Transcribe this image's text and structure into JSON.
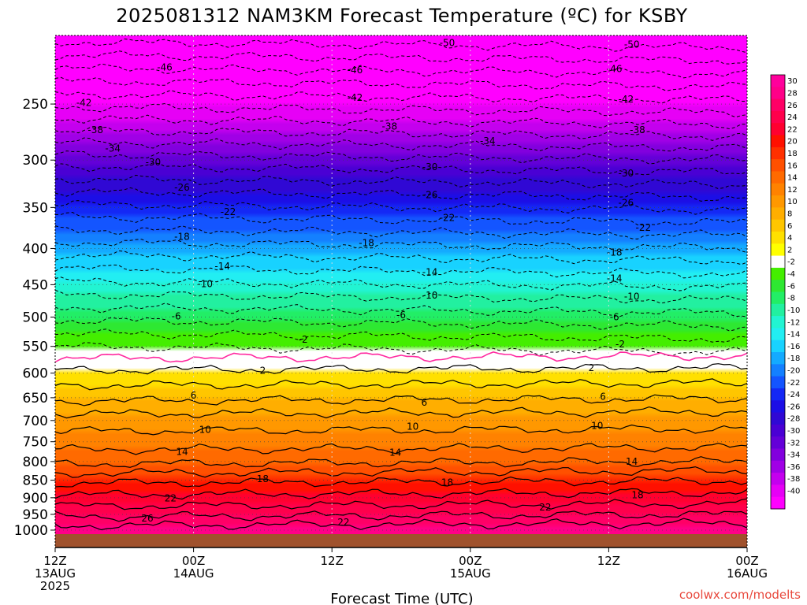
{
  "chart_data": {
    "type": "time-height-contour",
    "title": "2025081312 NAM3KM Forecast Temperature (ºC) for KSBY",
    "xlabel": "Forecast Time (UTC)",
    "ylabel": "",
    "credit": "coolwx.com/modelts",
    "y_axis": {
      "ticks": [
        "250",
        "300",
        "350",
        "400",
        "450",
        "500",
        "550",
        "600",
        "650",
        "700",
        "750",
        "800",
        "850",
        "900",
        "950",
        "1000"
      ],
      "range": [
        1013,
        200
      ],
      "scale": "log-pressure"
    },
    "x_axis": {
      "range": [
        0,
        60
      ],
      "unit": "forecast hours",
      "ticks": [
        {
          "hour": 0,
          "line1": "12Z",
          "line2": "13AUG",
          "line3": "2025"
        },
        {
          "hour": 12,
          "line1": "00Z",
          "line2": "14AUG",
          "line3": ""
        },
        {
          "hour": 24,
          "line1": "12Z",
          "line2": "",
          "line3": ""
        },
        {
          "hour": 36,
          "line1": "00Z",
          "line2": "15AUG",
          "line3": ""
        },
        {
          "hour": 48,
          "line1": "12Z",
          "line2": "",
          "line3": ""
        },
        {
          "hour": 60,
          "line1": "00Z",
          "line2": "16AUG",
          "line3": ""
        }
      ]
    },
    "grid": {
      "x": "dotted",
      "y": "dotted"
    },
    "colorbar": {
      "placement": "right",
      "labels": [
        "30",
        "28",
        "26",
        "24",
        "22",
        "20",
        "18",
        "16",
        "14",
        "12",
        "10",
        "8",
        "6",
        "4",
        "2",
        "-2",
        "-4",
        "-6",
        "-8",
        "-10",
        "-12",
        "-14",
        "-16",
        "-18",
        "-20",
        "-22",
        "-24",
        "-26",
        "-28",
        "-30",
        "-32",
        "-34",
        "-36",
        "-38",
        "-40"
      ],
      "colors": [
        "#ff009c",
        "#ff0088",
        "#ff0066",
        "#ff004c",
        "#ff0030",
        "#ff1000",
        "#ff3000",
        "#ff5000",
        "#ff6a00",
        "#ff8200",
        "#ff9800",
        "#ffae00",
        "#ffc600",
        "#ffe000",
        "#ffff00",
        "#ffffff",
        "#44ee00",
        "#2ee832",
        "#22ee66",
        "#22f0a0",
        "#22f4d2",
        "#22eef2",
        "#18d2ff",
        "#14aaff",
        "#1480ff",
        "#1455ff",
        "#1428f5",
        "#1c0ee6",
        "#3008d4",
        "#4a00d4",
        "#6400d8",
        "#8200de",
        "#a000e6",
        "#c400ee",
        "#e600f6",
        "#ff00ff"
      ]
    },
    "temperature_profile": {
      "pressure_hpa": [
        1000,
        950,
        900,
        850,
        800,
        750,
        700,
        650,
        600,
        550,
        500,
        450,
        400,
        350,
        300,
        250,
        200
      ],
      "temperature_c": [
        27,
        23.5,
        20.5,
        17.5,
        13.5,
        11,
        9,
        5.5,
        2.5,
        -2,
        -6.5,
        -11.5,
        -17,
        -23.5,
        -31,
        -40.5,
        -51
      ]
    },
    "contour_labels": [
      {
        "value": "-50",
        "hour": 34,
        "p": 205
      },
      {
        "value": "-50",
        "hour": 50,
        "p": 206
      },
      {
        "value": "-46",
        "hour": 9.5,
        "p": 222
      },
      {
        "value": "-46",
        "hour": 26,
        "p": 224
      },
      {
        "value": "-46",
        "hour": 48.5,
        "p": 223
      },
      {
        "value": "-42",
        "hour": 2.5,
        "p": 249
      },
      {
        "value": "-42",
        "hour": 26,
        "p": 245
      },
      {
        "value": "-42",
        "hour": 49.5,
        "p": 246
      },
      {
        "value": "-38",
        "hour": 3.5,
        "p": 272
      },
      {
        "value": "-38",
        "hour": 29,
        "p": 269
      },
      {
        "value": "-38",
        "hour": 50.5,
        "p": 272
      },
      {
        "value": "-34",
        "hour": 5,
        "p": 289
      },
      {
        "value": "-34",
        "hour": 37.5,
        "p": 282
      },
      {
        "value": "-30",
        "hour": 8.5,
        "p": 302
      },
      {
        "value": "-30",
        "hour": 32.5,
        "p": 307
      },
      {
        "value": "-30",
        "hour": 49.5,
        "p": 313
      },
      {
        "value": "-26",
        "hour": 11,
        "p": 328
      },
      {
        "value": "-26",
        "hour": 32.5,
        "p": 336
      },
      {
        "value": "-26",
        "hour": 49.5,
        "p": 345
      },
      {
        "value": "-22",
        "hour": 15,
        "p": 355
      },
      {
        "value": "-22",
        "hour": 34,
        "p": 362
      },
      {
        "value": "-22",
        "hour": 51,
        "p": 374
      },
      {
        "value": "-18",
        "hour": 11,
        "p": 385
      },
      {
        "value": "-18",
        "hour": 27,
        "p": 393
      },
      {
        "value": "-18",
        "hour": 48.5,
        "p": 405
      },
      {
        "value": "-14",
        "hour": 14.5,
        "p": 424
      },
      {
        "value": "-14",
        "hour": 32.5,
        "p": 432
      },
      {
        "value": "-14",
        "hour": 48.5,
        "p": 441
      },
      {
        "value": "-10",
        "hour": 13,
        "p": 449
      },
      {
        "value": "-10",
        "hour": 32.5,
        "p": 466
      },
      {
        "value": "-10",
        "hour": 50,
        "p": 468
      },
      {
        "value": "-6",
        "hour": 10.5,
        "p": 499
      },
      {
        "value": "-6",
        "hour": 30,
        "p": 497
      },
      {
        "value": "-6",
        "hour": 48.5,
        "p": 500
      },
      {
        "value": "-2",
        "hour": 21.5,
        "p": 538
      },
      {
        "value": "-2",
        "hour": 49,
        "p": 546
      },
      {
        "value": "2",
        "hour": 18,
        "p": 595
      },
      {
        "value": "2",
        "hour": 46.5,
        "p": 590
      },
      {
        "value": "6",
        "hour": 12,
        "p": 645
      },
      {
        "value": "6",
        "hour": 32,
        "p": 660
      },
      {
        "value": "6",
        "hour": 47.5,
        "p": 648
      },
      {
        "value": "10",
        "hour": 13,
        "p": 721
      },
      {
        "value": "10",
        "hour": 31,
        "p": 714
      },
      {
        "value": "10",
        "hour": 47,
        "p": 712
      },
      {
        "value": "14",
        "hour": 11,
        "p": 775
      },
      {
        "value": "14",
        "hour": 29.5,
        "p": 777
      },
      {
        "value": "14",
        "hour": 50,
        "p": 800
      },
      {
        "value": "18",
        "hour": 18,
        "p": 847
      },
      {
        "value": "18",
        "hour": 34,
        "p": 856
      },
      {
        "value": "18",
        "hour": 50.5,
        "p": 892
      },
      {
        "value": "22",
        "hour": 10,
        "p": 902
      },
      {
        "value": "22",
        "hour": 25,
        "p": 975
      },
      {
        "value": "22",
        "hour": 42.5,
        "p": 928
      },
      {
        "value": "26",
        "hour": 8,
        "p": 962
      }
    ],
    "freezing_line": {
      "label": "0",
      "color": "#ff2aa0"
    },
    "ground_color": "#a0522d"
  }
}
